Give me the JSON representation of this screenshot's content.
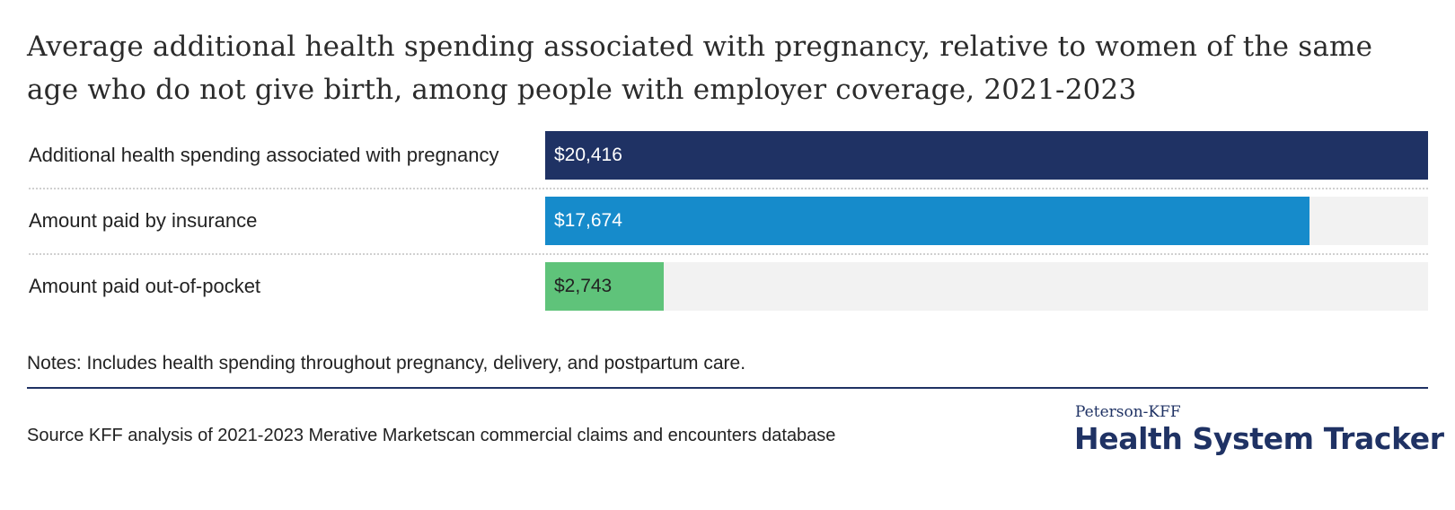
{
  "title": "Average additional health spending associated with pregnancy, relative to women of the same age who do not give birth, among people with employer coverage, 2021-2023",
  "notes": "Notes: Includes health spending throughout pregnancy, delivery, and postpartum care.",
  "source": "Source KFF analysis of 2021-2023 Merative Marketscan commercial claims and encounters database",
  "logo": {
    "top_line": "Peterson-KFF",
    "main_line": "Health System Tracker"
  },
  "chart_data": {
    "type": "bar",
    "orientation": "horizontal",
    "categories": [
      "Additional health spending associated with pregnancy",
      "Amount paid by insurance",
      "Amount paid out-of-pocket"
    ],
    "values": [
      20416,
      17674,
      2743
    ],
    "value_labels": [
      "$20,416",
      "$17,674",
      "$2,743"
    ],
    "colors": [
      "#1f3264",
      "#168bcb",
      "#5fc37a"
    ],
    "label_colors": [
      "#ffffff",
      "#ffffff",
      "#222222"
    ],
    "track_color": "#f2f2f2",
    "xlim": [
      0,
      20416
    ],
    "grid": false,
    "title": "",
    "xlabel": "",
    "ylabel": ""
  }
}
